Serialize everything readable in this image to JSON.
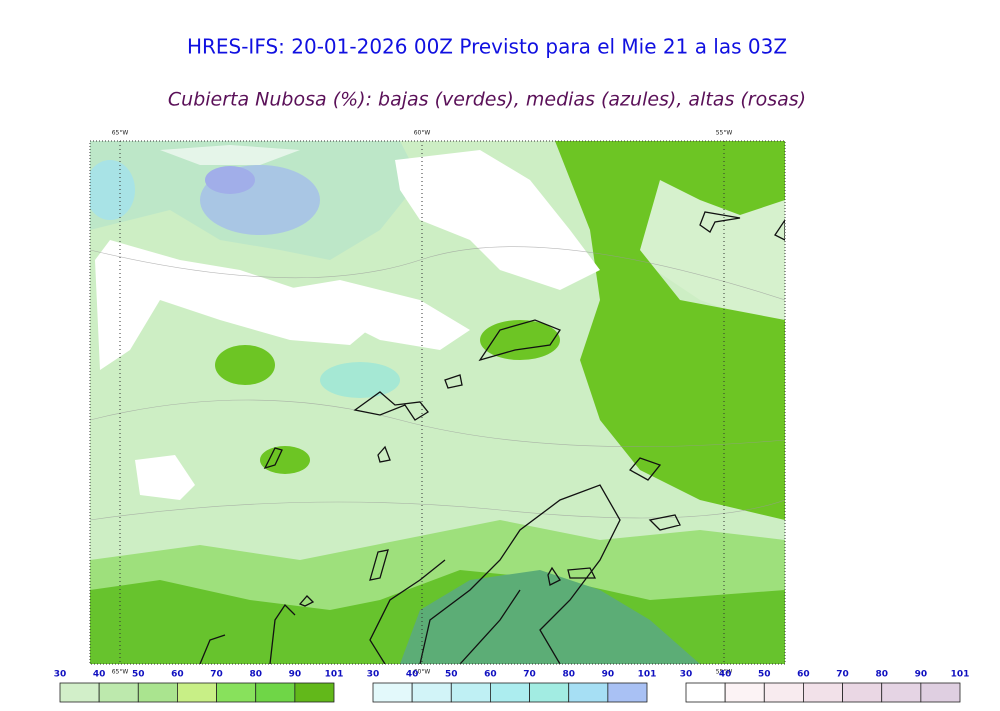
{
  "header": {
    "title": "HRES-IFS: 20-01-2026 00Z Previsto para el Mie 21 a las 03Z",
    "subtitle": "Cubierta Nubosa (%): bajas (verdes), medias (azules), altas (rosas)"
  },
  "map": {
    "longitude_labels_top": [
      "65°W",
      "60°W",
      "55°W"
    ],
    "longitude_labels_bottom": [
      "65°W",
      "60°W",
      "55°W"
    ]
  },
  "colorbars": [
    {
      "labels": [
        "30",
        "40",
        "50",
        "60",
        "70",
        "80",
        "90",
        "101"
      ],
      "colors": [
        "#d2efc9",
        "#bde9ad",
        "#aae48f",
        "#c8ef86",
        "#88e15c",
        "#6fd647",
        "#62b81a"
      ]
    },
    {
      "labels": [
        "30",
        "40",
        "50",
        "60",
        "70",
        "80",
        "90",
        "101"
      ],
      "colors": [
        "#e3f9fb",
        "#d2f4f8",
        "#bff0f4",
        "#acedef",
        "#a2ece2",
        "#a6dff4",
        "#a9c1f4"
      ]
    },
    {
      "labels": [
        "30",
        "40",
        "50",
        "60",
        "70",
        "80",
        "90",
        "101"
      ],
      "colors": [
        "#ffffff",
        "#fcf3f5",
        "#f8ebef",
        "#f2e1e9",
        "#ead7e4",
        "#e5d4e4",
        "#dfcfe1"
      ]
    }
  ]
}
